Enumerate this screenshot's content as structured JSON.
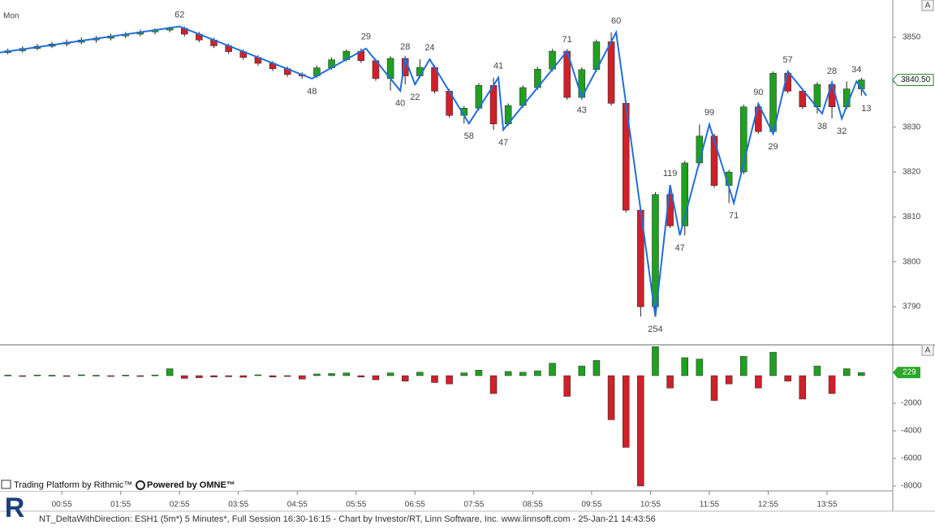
{
  "chart_data": [
    {
      "type": "candlestick",
      "session_label": "Mon",
      "x": [
        0,
        15,
        30,
        45,
        60,
        75,
        90,
        105,
        120,
        135,
        150,
        165,
        180,
        195,
        210,
        225,
        240,
        255,
        270,
        285,
        300,
        315,
        330,
        345,
        360,
        375,
        390,
        405,
        420,
        435,
        450,
        465,
        480,
        495,
        510,
        525,
        540,
        555,
        570,
        585,
        600,
        615,
        630,
        645,
        660,
        675,
        690,
        705,
        720,
        735,
        750,
        765,
        780,
        795,
        810,
        825,
        840,
        855,
        870
      ],
      "open": [
        3846.6,
        3847.0,
        3847.5,
        3848.0,
        3848.5,
        3848.9,
        3849.4,
        3849.8,
        3850.3,
        3850.7,
        3851.2,
        3851.6,
        3852.0,
        3850.7,
        3849.4,
        3848.1,
        3846.8,
        3845.5,
        3844.2,
        3843.0,
        3841.7,
        3841.4,
        3843.2,
        3845.0,
        3846.9,
        3844.8,
        3840.8,
        3845.3,
        3841.4,
        3843.3,
        3838.0,
        3832.6,
        3834.2,
        3839.3,
        3830.7,
        3834.8,
        3838.8,
        3842.9,
        3846.9,
        3836.6,
        3842.8,
        3849.0,
        3835.3,
        3811.5,
        3790.0,
        3815.0,
        3808.0,
        3822.0,
        3828.0,
        3817.0,
        3820.0,
        3834.5,
        3829.0,
        3842.0,
        3838.0,
        3834.5,
        3839.5,
        3834.5,
        3838.5
      ],
      "high": [
        3847.5,
        3848.0,
        3848.5,
        3849.0,
        3849.5,
        3850.0,
        3850.3,
        3850.8,
        3851.2,
        3851.7,
        3852.0,
        3852.4,
        3852.4,
        3851.2,
        3849.9,
        3848.6,
        3847.3,
        3846.0,
        3844.7,
        3843.5,
        3842.2,
        3843.7,
        3845.5,
        3847.3,
        3847.5,
        3845.2,
        3845.8,
        3845.8,
        3845.1,
        3843.8,
        3838.5,
        3834.7,
        3839.8,
        3841.0,
        3835.3,
        3839.3,
        3843.4,
        3847.4,
        3847.4,
        3843.3,
        3849.5,
        3851.1,
        3835.8,
        3812.0,
        3815.5,
        3817.1,
        3822.5,
        3830.6,
        3828.5,
        3820.5,
        3835.0,
        3835.2,
        3842.4,
        3842.4,
        3838.5,
        3840.0,
        3839.9,
        3840.2,
        3841.0
      ],
      "low": [
        3846.2,
        3846.6,
        3847.1,
        3847.6,
        3848.0,
        3848.4,
        3848.8,
        3849.3,
        3849.8,
        3850.2,
        3850.6,
        3851.1,
        3850.2,
        3848.9,
        3847.6,
        3846.3,
        3845.0,
        3843.7,
        3842.5,
        3841.2,
        3840.8,
        3840.9,
        3842.8,
        3844.6,
        3844.3,
        3840.3,
        3838.1,
        3839.5,
        3840.9,
        3837.5,
        3832.1,
        3830.8,
        3833.7,
        3829.4,
        3830.2,
        3834.3,
        3838.3,
        3842.4,
        3836.1,
        3836.1,
        3842.3,
        3834.8,
        3811.0,
        3787.8,
        3789.5,
        3807.5,
        3805.9,
        3821.5,
        3816.5,
        3813.1,
        3819.5,
        3828.5,
        3828.5,
        3837.5,
        3834.0,
        3833.0,
        3831.9,
        3834.0,
        3837.0
      ],
      "close": [
        3847.0,
        3847.5,
        3848.0,
        3848.5,
        3848.9,
        3849.4,
        3849.8,
        3850.3,
        3850.7,
        3851.2,
        3851.6,
        3852.0,
        3850.7,
        3849.4,
        3848.1,
        3846.8,
        3845.5,
        3844.2,
        3843.0,
        3841.7,
        3841.4,
        3843.2,
        3845.0,
        3846.9,
        3844.8,
        3840.8,
        3845.3,
        3841.4,
        3843.3,
        3838.0,
        3832.6,
        3834.2,
        3839.3,
        3830.7,
        3834.8,
        3838.8,
        3842.9,
        3846.9,
        3836.6,
        3842.8,
        3849.0,
        3835.3,
        3811.5,
        3790.0,
        3815.0,
        3808.0,
        3822.0,
        3828.0,
        3817.0,
        3820.0,
        3834.5,
        3829.0,
        3842.0,
        3838.0,
        3834.5,
        3839.5,
        3834.5,
        3838.5,
        3840.5
      ],
      "up_color": "#20a020",
      "down_color": "#d0202a",
      "zigzag": {
        "color": "#1f6fdc",
        "x": [
          -8,
          175,
          310,
          365,
          400,
          405,
          415,
          430,
          470,
          500,
          505,
          570,
          585,
          620,
          660,
          675,
          685,
          715,
          740,
          765,
          780,
          795,
          830,
          840,
          850,
          865,
          875
        ],
        "values": [
          3846.6,
          3852.4,
          3840.8,
          3847.5,
          3838.1,
          3845.3,
          3839.5,
          3845.1,
          3830.8,
          3841.0,
          3829.4,
          3846.9,
          3836.6,
          3851.1,
          3787.8,
          3817.1,
          3805.9,
          3830.6,
          3813.1,
          3835.2,
          3828.5,
          3842.4,
          3833.0,
          3839.9,
          3831.9,
          3840.2,
          3837.0
        ],
        "labels": [
          null,
          62,
          48,
          29,
          40,
          28,
          22,
          24,
          58,
          41,
          47,
          71,
          43,
          60,
          254,
          119,
          47,
          99,
          71,
          90,
          29,
          57,
          38,
          28,
          32,
          34,
          13
        ]
      },
      "last_price": {
        "value": 3840.5,
        "label": "3840.50"
      },
      "xlim": [
        -8,
        902
      ],
      "ylim": [
        3781.7,
        3858.3
      ],
      "yticks": [
        3790,
        3800,
        3810,
        3820,
        3830,
        3840,
        3850
      ],
      "xticks": [
        {
          "value": 55,
          "label": "00:55"
        },
        {
          "value": 115,
          "label": "01:55"
        },
        {
          "value": 175,
          "label": "02:55"
        },
        {
          "value": 235,
          "label": "03:55"
        },
        {
          "value": 295,
          "label": "04:55"
        },
        {
          "value": 355,
          "label": "05:55"
        },
        {
          "value": 415,
          "label": "06:55"
        },
        {
          "value": 475,
          "label": "07:55"
        },
        {
          "value": 535,
          "label": "08:55"
        },
        {
          "value": 595,
          "label": "09:55"
        },
        {
          "value": 655,
          "label": "10:55"
        },
        {
          "value": 715,
          "label": "11:55"
        },
        {
          "value": 775,
          "label": "12:55"
        },
        {
          "value": 835,
          "label": "13:55"
        }
      ],
      "scale_button": "A"
    },
    {
      "type": "bar",
      "name": "NT_DeltaWithDirection",
      "values": [
        40,
        -30,
        50,
        30,
        -40,
        60,
        30,
        -50,
        40,
        -60,
        50,
        500,
        -200,
        -150,
        -100,
        -80,
        -120,
        60,
        -100,
        -50,
        -250,
        120,
        150,
        200,
        -100,
        -300,
        200,
        -400,
        250,
        -500,
        -600,
        200,
        400,
        -1300,
        300,
        250,
        350,
        900,
        -1500,
        700,
        1100,
        -3200,
        -5200,
        -8000,
        2100,
        -900,
        1300,
        1200,
        -1800,
        -600,
        1400,
        -900,
        1700,
        -400,
        -1700,
        700,
        -1300,
        500,
        229
      ],
      "up_color": "#20a020",
      "down_color": "#d0202a",
      "ylim": [
        -8353,
        2176
      ],
      "yticks": [
        -2000,
        -4000,
        -6000,
        -8000
      ],
      "scale_button": "A"
    }
  ],
  "branding": {
    "logo": "R",
    "platform": "Trading Platform by Rithmic™",
    "powered": "Powered by OMNE™"
  },
  "footer": "NT_DeltaWithDirection: ESH1 (5m*) 5 Minutes*, Full Session 16:30-16:15 - Chart by Investor/RT, Linn Software, Inc. www.linnsoft.com - 25-Jan-21 14:43:56"
}
